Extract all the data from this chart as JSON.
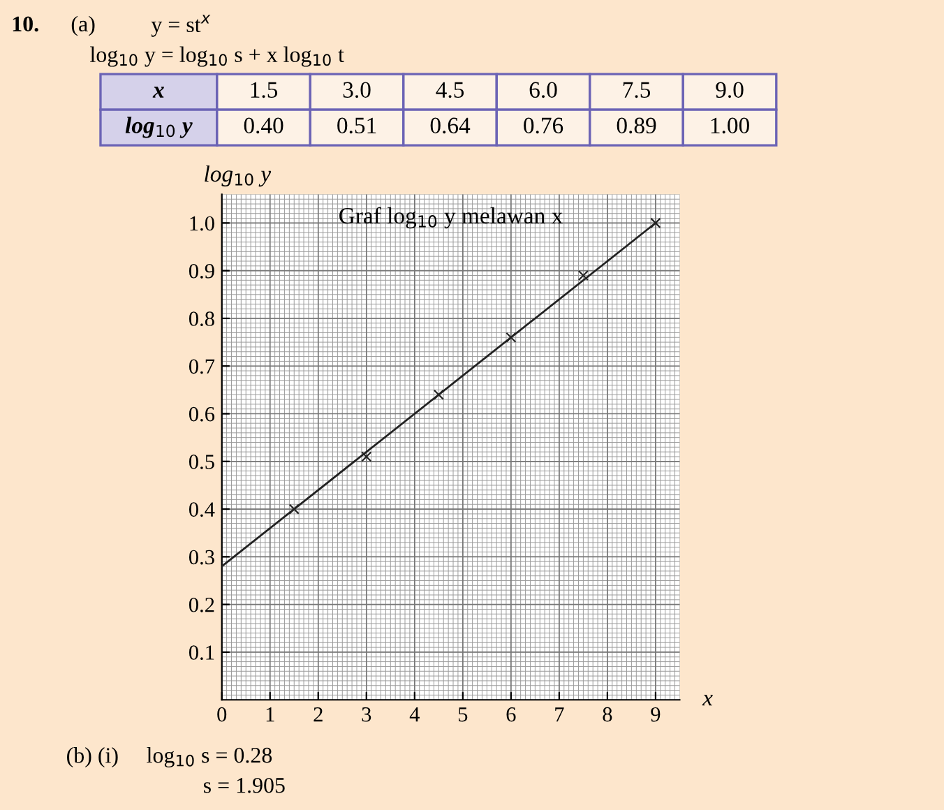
{
  "chart_data": {
    "type": "scatter",
    "title": "Graf log$_{10}$ y melawan x",
    "xlabel": "x",
    "ylabel": "log$_{10}$ y",
    "x": [
      1.5,
      3.0,
      4.5,
      6.0,
      7.5,
      9.0
    ],
    "series": [
      {
        "color": "#222222",
        "marker": "cross",
        "values": [
          0.4,
          0.51,
          0.64,
          0.76,
          0.89,
          1.0
        ]
      },
      {
        "type": "line",
        "color": "#222222",
        "line_style": "solid",
        "x": [
          0,
          9
        ],
        "values": [
          0.28,
          1.0
        ]
      }
    ],
    "xlim": [
      0,
      9.5
    ],
    "ylim": [
      0,
      1.06
    ],
    "xticks": [
      0,
      1,
      2,
      3,
      4,
      5,
      6,
      7,
      8,
      9
    ],
    "yticks": [
      0.1,
      0.2,
      0.3,
      0.4,
      0.5,
      0.6,
      0.7,
      0.8,
      0.9,
      {
        "value": 1.0,
        "label": "1.0"
      }
    ],
    "grid": true,
    "annotations": [
      "10.",
      "(a)",
      "y = st$^{x}$",
      "log$_{10}$ y = log$_{10}$ s + x log$_{10}$ t",
      "x",
      "1.5",
      "3.0",
      "4.5",
      "6.0",
      "7.5",
      "9.0",
      "log$_{10}$ y",
      "0.40",
      "0.51",
      "0.64",
      "0.76",
      "0.89",
      "1.00",
      "(b) (i)",
      "log$_{10}$ s = 0.28",
      "s = 1.905"
    ]
  }
}
